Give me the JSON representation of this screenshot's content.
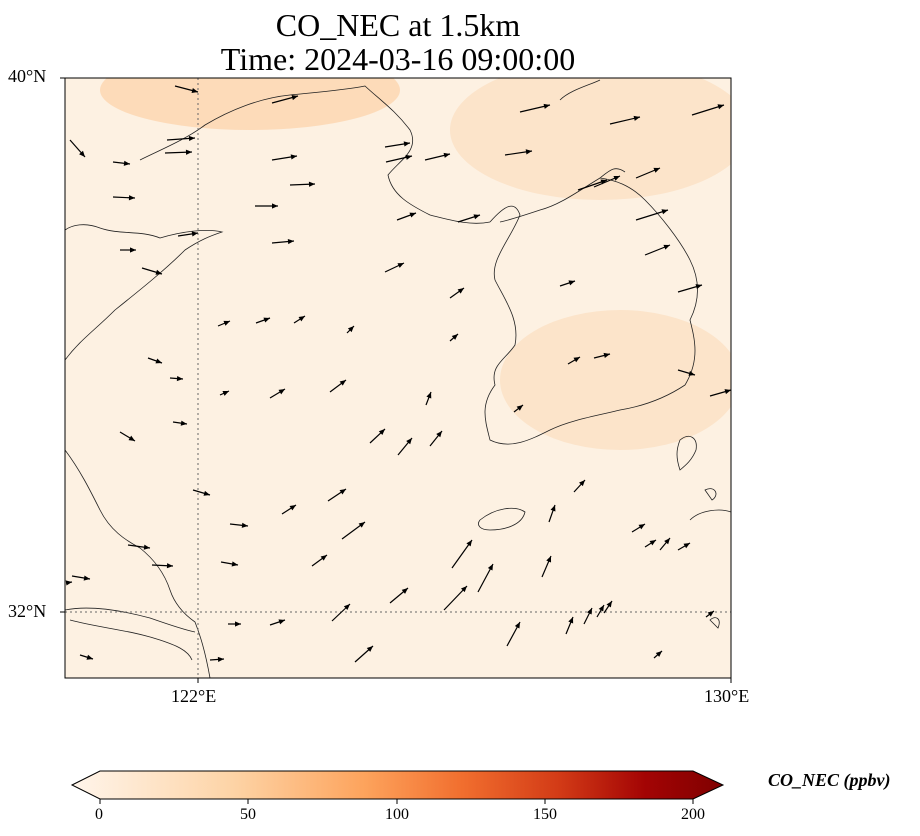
{
  "title_line1": "CO_NEC at 1.5km",
  "title_line2": "Time: 2024-03-16 09:00:00",
  "lat_labels": [
    "40°N",
    "32°N"
  ],
  "lon_labels": [
    "122°E",
    "130°E"
  ],
  "colorbar": {
    "label": "CO_NEC (ppbv)",
    "ticks": [
      "0",
      "50",
      "100",
      "150",
      "200"
    ],
    "min": 0,
    "max": 200,
    "colors": [
      "#fff5eb",
      "#fdd9b3",
      "#fdae6b",
      "#f26b2d",
      "#d5411a",
      "#a30404",
      "#7f0000"
    ]
  },
  "map": {
    "lon_range": [
      120,
      130
    ],
    "lat_range": [
      31,
      40
    ],
    "gridlines": {
      "lon": 122,
      "lat": 32
    }
  }
}
